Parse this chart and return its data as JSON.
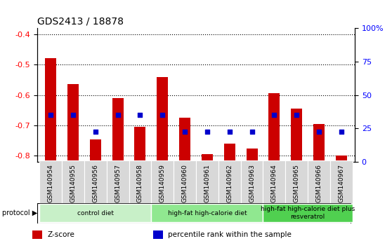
{
  "title": "GDS2413 / 18878",
  "samples": [
    "GSM140954",
    "GSM140955",
    "GSM140956",
    "GSM140957",
    "GSM140958",
    "GSM140959",
    "GSM140960",
    "GSM140961",
    "GSM140962",
    "GSM140963",
    "GSM140964",
    "GSM140965",
    "GSM140966",
    "GSM140967"
  ],
  "zscore": [
    -0.48,
    -0.565,
    -0.745,
    -0.61,
    -0.705,
    -0.54,
    -0.675,
    -0.795,
    -0.76,
    -0.775,
    -0.595,
    -0.645,
    -0.695,
    -0.8
  ],
  "pct_rank_left": [
    -0.665,
    -0.665,
    -0.72,
    -0.665,
    -0.665,
    -0.665,
    -0.72,
    -0.72,
    -0.72,
    -0.72,
    -0.665,
    -0.665,
    -0.72,
    -0.72
  ],
  "ylim_left": [
    -0.82,
    -0.38
  ],
  "ylim_right": [
    0,
    100
  ],
  "yticks_left": [
    -0.8,
    -0.7,
    -0.6,
    -0.5,
    -0.4
  ],
  "yticks_right": [
    0,
    25,
    50,
    75,
    100
  ],
  "ytick_right_labels": [
    "0",
    "25",
    "50",
    "75",
    "100%"
  ],
  "bar_color": "#cc0000",
  "dot_color": "#0000cc",
  "plot_bg": "#ffffff",
  "fig_bg": "#ffffff",
  "tick_bg": "#d8d8d8",
  "protocol_groups": [
    {
      "label": "control diet",
      "start": 0,
      "end": 4,
      "color": "#c8f0c8"
    },
    {
      "label": "high-fat high-calorie diet",
      "start": 5,
      "end": 9,
      "color": "#90e890"
    },
    {
      "label": "high-fat high-calorie diet plus\nresveratrol",
      "start": 10,
      "end": 13,
      "color": "#50d050"
    }
  ],
  "legend_items": [
    {
      "color": "#cc0000",
      "label": "Z-score"
    },
    {
      "color": "#0000cc",
      "label": "percentile rank within the sample"
    }
  ],
  "bar_bottom": -0.82,
  "bar_width": 0.5
}
